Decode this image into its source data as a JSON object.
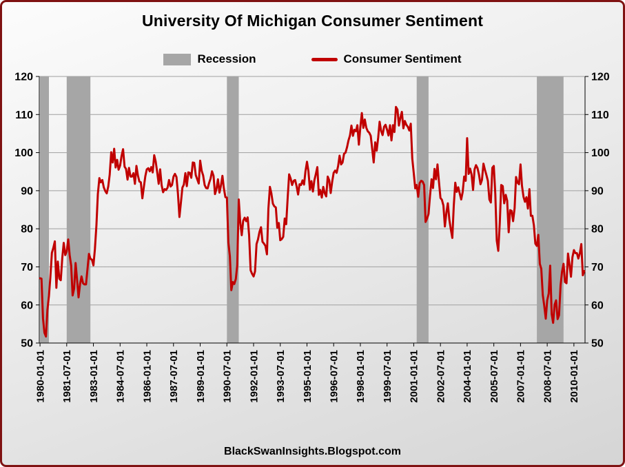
{
  "title": "University Of Michigan Consumer Sentiment",
  "footer": "BlackSwanInsights.Blogspot.com",
  "colors": {
    "line": "#c00000",
    "recession": "#a6a6a6",
    "frame_border": "#7f1212",
    "grid": "#9f9f9f",
    "axis": "#000000"
  },
  "legend": {
    "items": [
      {
        "label": "Recession",
        "swatch": "box"
      },
      {
        "label": "Consumer Sentiment",
        "swatch": "line"
      }
    ]
  },
  "chart_data": {
    "type": "line",
    "title": "University Of Michigan Consumer Sentiment",
    "x_start": "1980-01",
    "x_frequency": "monthly",
    "x_tick_interval_months": 18,
    "x_tick_labels": [
      "1980-01-01",
      "1981-07-01",
      "1983-01-01",
      "1984-07-01",
      "1986-01-01",
      "1987-07-01",
      "1989-01-01",
      "1990-07-01",
      "1992-01-01",
      "1993-07-01",
      "1995-01-01",
      "1996-07-01",
      "1998-01-01",
      "1999-07-01",
      "2001-01-01",
      "2002-07-01",
      "2004-01-01",
      "2005-07-01",
      "2007-01-01",
      "2008-07-01",
      "2010-01-01"
    ],
    "ylim": [
      50,
      120
    ],
    "y_ticks": [
      50,
      60,
      70,
      80,
      90,
      100,
      110,
      120
    ],
    "grid": true,
    "legend_position": "top",
    "series": [
      {
        "name": "Consumer Sentiment",
        "color": "#c00000",
        "values": [
          67.0,
          66.9,
          56.5,
          52.7,
          51.7,
          58.7,
          62.3,
          67.3,
          73.7,
          75.0,
          76.7,
          64.5,
          71.4,
          66.9,
          66.5,
          72.4,
          76.3,
          73.1,
          74.1,
          77.2,
          73.1,
          70.3,
          62.5,
          64.3,
          71.0,
          66.5,
          62.0,
          65.5,
          67.5,
          65.7,
          65.4,
          65.4,
          69.3,
          73.4,
          72.1,
          71.9,
          70.4,
          74.6,
          80.8,
          89.1,
          93.3,
          92.2,
          92.8,
          90.9,
          89.9,
          89.3,
          91.1,
          94.2,
          100.1,
          97.4,
          101.0,
          96.1,
          98.1,
          95.5,
          96.6,
          99.1,
          100.9,
          96.3,
          95.7,
          92.9,
          96.0,
          93.7,
          93.7,
          94.6,
          91.8,
          96.5,
          94.0,
          92.4,
          92.2,
          88.0,
          90.9,
          93.8,
          95.6,
          95.9,
          95.1,
          96.2,
          94.8,
          99.3,
          97.7,
          94.9,
          91.8,
          95.6,
          91.4,
          89.6,
          90.4,
          90.2,
          90.8,
          92.8,
          91.1,
          91.5,
          93.7,
          94.4,
          93.6,
          89.3,
          83.1,
          86.8,
          90.8,
          91.6,
          94.6,
          91.2,
          94.8,
          94.7,
          93.4,
          97.4,
          97.3,
          94.1,
          93.0,
          91.9,
          97.9,
          95.2,
          94.0,
          91.5,
          90.7,
          90.6,
          92.0,
          93.2,
          95.1,
          93.9,
          89.1,
          90.5,
          93.0,
          89.5,
          91.3,
          93.9,
          90.6,
          88.3,
          88.2,
          76.4,
          72.8,
          63.9,
          66.0,
          65.5,
          66.8,
          70.4,
          87.7,
          81.8,
          78.3,
          82.1,
          82.9,
          82.0,
          83.0,
          78.3,
          69.1,
          68.2,
          67.5,
          68.8,
          76.0,
          77.2,
          79.2,
          80.4,
          76.6,
          76.1,
          75.5,
          73.3,
          85.3,
          91.0,
          89.3,
          86.6,
          85.9,
          85.6,
          80.3,
          81.5,
          77.0,
          77.3,
          77.9,
          82.7,
          81.2,
          88.2,
          94.3,
          93.2,
          91.5,
          92.6,
          92.8,
          91.2,
          89.0,
          91.7,
          91.5,
          92.7,
          91.6,
          95.1,
          97.6,
          95.1,
          90.3,
          92.5,
          89.8,
          92.7,
          94.4,
          96.2,
          88.9,
          90.2,
          88.2,
          91.0,
          89.3,
          88.5,
          93.7,
          92.7,
          89.4,
          92.4,
          94.7,
          95.3,
          94.7,
          96.5,
          99.2,
          96.9,
          97.4,
          99.7,
          100.0,
          101.4,
          103.2,
          104.5,
          107.1,
          104.4,
          106.0,
          105.6,
          107.2,
          102.1,
          106.6,
          110.4,
          106.5,
          108.7,
          106.5,
          105.6,
          105.2,
          104.4,
          100.9,
          97.4,
          102.7,
          100.5,
          103.9,
          108.1,
          105.7,
          104.6,
          106.8,
          107.3,
          106.0,
          104.5,
          107.2,
          103.2,
          107.2,
          105.4,
          112.0,
          111.3,
          107.1,
          109.2,
          110.7,
          106.4,
          108.3,
          107.3,
          106.8,
          105.8,
          107.6,
          98.4,
          94.7,
          90.6,
          91.5,
          88.4,
          92.0,
          92.6,
          92.4,
          91.5,
          81.8,
          82.7,
          83.9,
          88.8,
          93.0,
          90.7,
          95.7,
          93.0,
          96.9,
          92.4,
          88.1,
          87.6,
          86.1,
          80.6,
          84.2,
          86.7,
          82.4,
          79.9,
          77.6,
          86.0,
          92.1,
          89.7,
          90.9,
          89.3,
          87.7,
          89.6,
          93.7,
          92.6,
          103.8,
          94.4,
          95.8,
          94.2,
          90.2,
          95.6,
          96.7,
          95.9,
          94.2,
          91.7,
          92.8,
          97.1,
          95.5,
          94.1,
          92.6,
          87.7,
          86.9,
          96.0,
          96.5,
          89.1,
          76.9,
          74.2,
          81.6,
          91.5,
          91.2,
          86.7,
          88.9,
          87.4,
          79.1,
          84.9,
          84.7,
          82.0,
          85.4,
          93.6,
          92.1,
          91.7,
          96.9,
          91.3,
          88.4,
          87.1,
          88.3,
          85.3,
          90.4,
          83.4,
          83.4,
          80.9,
          76.1,
          75.5,
          78.4,
          70.8,
          69.5,
          62.6,
          59.8,
          56.4,
          61.2,
          63.0,
          70.3,
          57.6,
          55.3,
          60.1,
          61.2,
          56.3,
          57.3,
          65.1,
          68.7,
          70.8,
          66.0,
          65.7,
          73.5,
          70.6,
          67.4,
          72.5,
          74.4,
          73.6,
          73.6,
          72.2,
          73.6,
          76.0,
          67.8,
          68.9
        ]
      }
    ],
    "recession_shading": [
      {
        "start": "1980-01",
        "end": "1980-07"
      },
      {
        "start": "1981-07",
        "end": "1982-11"
      },
      {
        "start": "1990-07",
        "end": "1991-03"
      },
      {
        "start": "2001-03",
        "end": "2001-11"
      },
      {
        "start": "2007-12",
        "end": "2009-06"
      }
    ]
  }
}
